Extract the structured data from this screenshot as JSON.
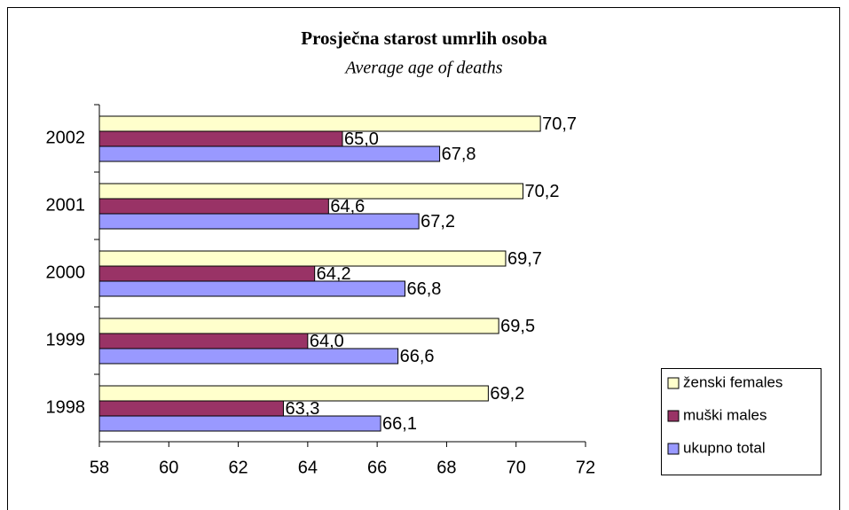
{
  "chart_data": {
    "type": "hbar",
    "title": "Prosječna starost umrlih osoba",
    "subtitle": "Average age of deaths",
    "categories": [
      "1998",
      "1999",
      "2000",
      "2001",
      "2002"
    ],
    "series": [
      {
        "name": "ženski females",
        "color": "#ffffcc",
        "values": [
          69.2,
          69.5,
          69.7,
          70.2,
          70.7
        ],
        "value_labels": [
          "69,2",
          "69,5",
          "69,7",
          "70,2",
          "70,7"
        ]
      },
      {
        "name": "muški males",
        "color": "#993366",
        "values": [
          63.3,
          64.0,
          64.2,
          64.6,
          65.0
        ],
        "value_labels": [
          "63,3",
          "64,0",
          "64,2",
          "64,6",
          "65,0"
        ]
      },
      {
        "name": "ukupno total",
        "color": "#9999ff",
        "values": [
          66.1,
          66.6,
          66.8,
          67.2,
          67.8
        ],
        "value_labels": [
          "66,1",
          "66,6",
          "66,8",
          "67,2",
          "67,8"
        ]
      }
    ],
    "xlim": [
      58,
      72
    ],
    "xticks": [
      58,
      60,
      62,
      64,
      66,
      68,
      70,
      72
    ],
    "legend": "right"
  }
}
